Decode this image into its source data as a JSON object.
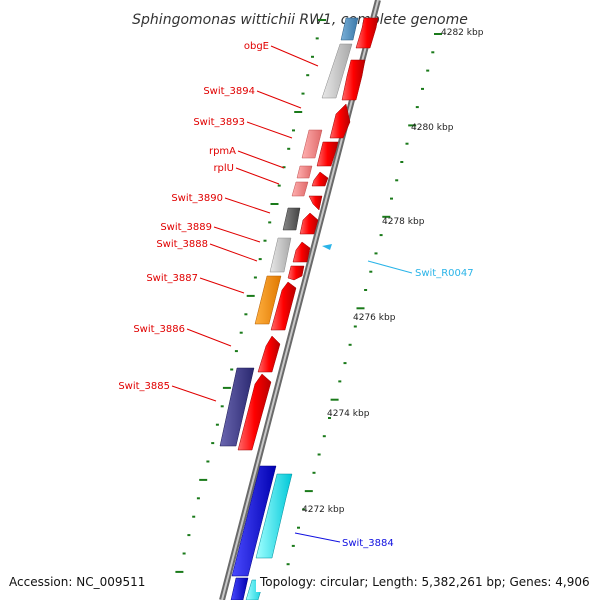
{
  "title": "Sphingomonas wittichii RW1, complete genome",
  "footer": {
    "accession": "Accession: NC_009511",
    "topology": "Topology: circular; Length: 5,382,261 bp; Genes: 4,906"
  },
  "ticks": [
    {
      "label": "4282 kbp"
    },
    {
      "label": "4280 kbp"
    },
    {
      "label": "4278 kbp"
    },
    {
      "label": "4276 kbp"
    },
    {
      "label": "4274 kbp"
    },
    {
      "label": "4272 kbp"
    }
  ],
  "genes": [
    {
      "label": "obgE"
    },
    {
      "label": "Swit_3894"
    },
    {
      "label": "Swit_3893"
    },
    {
      "label": "rpmA"
    },
    {
      "label": "rplU"
    },
    {
      "label": "Swit_3890"
    },
    {
      "label": "Swit_3889"
    },
    {
      "label": "Swit_3888"
    },
    {
      "label": "Swit_3887"
    },
    {
      "label": "Swit_3886"
    },
    {
      "label": "Swit_3885"
    },
    {
      "label": "Swit_R0047"
    },
    {
      "label": "Swit_3884"
    }
  ],
  "colors": {
    "cds": "#ff0000",
    "rna": "#00ffff",
    "other_strand_cds": "#0000ee",
    "tick": "#1a7a1a"
  }
}
